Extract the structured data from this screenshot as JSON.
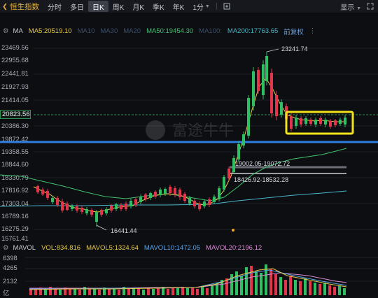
{
  "topbar": {
    "index_name": "恒生指数",
    "tabs": [
      {
        "label": "分时"
      },
      {
        "label": "多日"
      },
      {
        "label": "日K"
      },
      {
        "label": "周K"
      },
      {
        "label": "月K"
      },
      {
        "label": "季K"
      },
      {
        "label": "年K"
      },
      {
        "label": "1分"
      }
    ],
    "active_tab": "日K",
    "display_label": "显示"
  },
  "ma_bar": {
    "ma": "MA",
    "ma5": "MA5:20519.10",
    "ma10": "MA10",
    "ma30": "MA30",
    "ma20": "MA20",
    "ma50": "MA50:19454.30",
    "ma100": "MA100:",
    "ma200": "MA200:17763.65",
    "adjust": "前复权"
  },
  "price_axis": [
    "23469.56",
    "22955.68",
    "22441.81",
    "21927.93",
    "21414.05",
    "20823.56",
    "20386.30",
    "19872.42",
    "19358.55",
    "18844.60",
    "18330.79",
    "17816.92",
    "17303.04",
    "16789.16",
    "16275.29",
    "15761.41"
  ],
  "current_price": "20823.56",
  "annotations": {
    "high": "23241.74",
    "low": "16441.44",
    "range1": "19002.05-19072.72",
    "range2": "18426.92-18532.28"
  },
  "vol_bar": {
    "mavol": "MAVOL",
    "vol": "VOL:834.816",
    "mavol5": "MAVOL5:1324.64",
    "mavol10": "MAVOL10:1472.05",
    "mavol20": "MAVOL20:2196.12"
  },
  "vol_axis": [
    "6398",
    "4265",
    "2132",
    "亿"
  ],
  "watermark": "富途牛牛",
  "colors": {
    "up": "#2fbf63",
    "down": "#e0354a",
    "ma5": "#e6c84a",
    "ma50": "#3fc36f",
    "ma200": "#48b6c9",
    "blue_line": "#2f7de0",
    "highlight": "#f2e21c"
  }
}
